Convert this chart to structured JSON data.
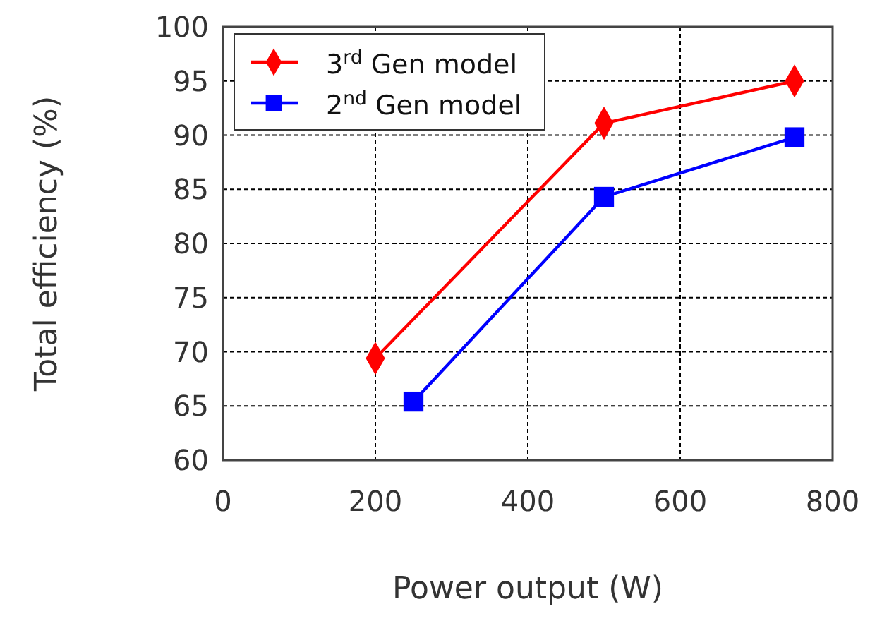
{
  "chart_data": {
    "type": "line",
    "xlabel": "Power output (W)",
    "ylabel": "Total efficiency (%)",
    "xlim": [
      0,
      800
    ],
    "xticks": [
      0,
      200,
      400,
      600,
      800
    ],
    "ylim": [
      60,
      100
    ],
    "yticks": [
      60,
      65,
      70,
      75,
      80,
      85,
      90,
      95,
      100
    ],
    "grid": true,
    "legend": "top left",
    "line_style": "solid",
    "series": [
      {
        "name": "3$^{rd}$ Gen model",
        "color": "#ff0000",
        "marker": "diamond",
        "x": [
          200,
          500,
          750
        ],
        "values": [
          69.4,
          91.1,
          95
        ]
      },
      {
        "name": "2$^{nd}$ Gen model",
        "color": "#0000ff",
        "marker": "square",
        "x": [
          250,
          500,
          750
        ],
        "values": [
          65.4,
          84.3,
          89.8
        ]
      }
    ]
  }
}
